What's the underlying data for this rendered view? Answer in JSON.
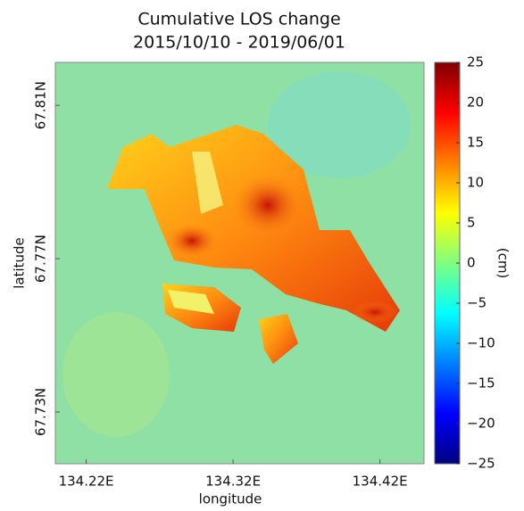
{
  "chart_data": {
    "type": "image",
    "title": "Cumulative LOS change",
    "subtitle": "2015/10/10 - 2019/06/01",
    "x_label": "longitude",
    "y_label": "latitude",
    "xlim": [
      134.199,
      134.45
    ],
    "xticks": [
      {
        "value": 134.22,
        "label": "134.22E"
      },
      {
        "value": 134.32,
        "label": "134.32E"
      },
      {
        "value": 134.42,
        "label": "134.42E"
      }
    ],
    "ylim": [
      67.7165,
      67.8212
    ],
    "yticks": [
      {
        "value": 67.73,
        "label": "67.73N"
      },
      {
        "value": 67.77,
        "label": "67.77N"
      },
      {
        "value": 67.81,
        "label": "67.81N"
      }
    ],
    "colorbar": {
      "colormap": "jet",
      "lim": [
        -25,
        25
      ],
      "label": "(cm)",
      "ticks": [
        {
          "value": -25,
          "label": "−25"
        },
        {
          "value": -20,
          "label": "−20"
        },
        {
          "value": -15,
          "label": "−15"
        },
        {
          "value": -10,
          "label": "−10"
        },
        {
          "value": -5,
          "label": "−5"
        },
        0,
        5,
        10,
        15,
        20,
        25
      ]
    }
  }
}
